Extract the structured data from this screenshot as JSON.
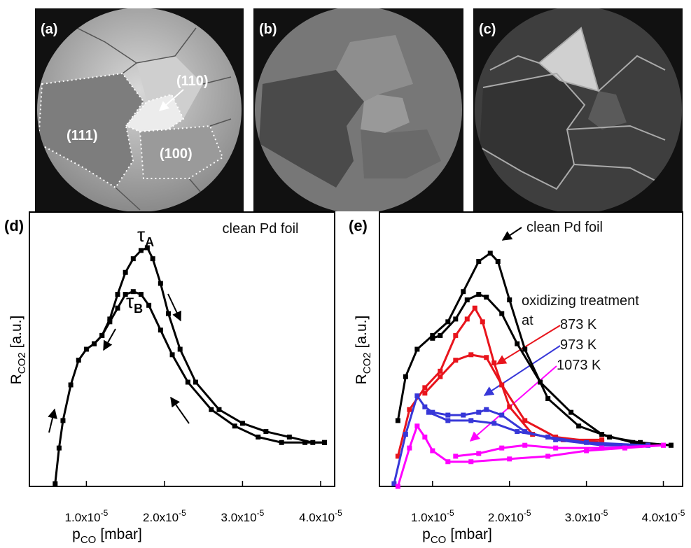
{
  "images": [
    {
      "label": "(a)",
      "regions": [
        "(110)",
        "(111)",
        "(100)"
      ]
    },
    {
      "label": "(b)"
    },
    {
      "label": "(c)"
    }
  ],
  "chart_data": [
    {
      "type": "line",
      "panel_label": "(d)",
      "marker": "square",
      "xlabel": {
        "symbol": "p",
        "subscript": "CO",
        "unit": "[mbar]"
      },
      "ylabel": {
        "symbol": "R",
        "subscript": "CO2",
        "unit": "[a.u.]"
      },
      "xlim": [
        2.7e-06,
        4.18e-05
      ],
      "ylim": [
        0,
        100
      ],
      "xticks": [
        {
          "value": 1e-05,
          "label": "1.0x10",
          "exponent": "-5"
        },
        {
          "value": 2e-05,
          "label": "2.0x10",
          "exponent": "-5"
        },
        {
          "value": 3e-05,
          "label": "3.0x10",
          "exponent": "-5"
        },
        {
          "value": 4e-05,
          "label": "4.0x10",
          "exponent": "-5"
        }
      ],
      "annotations": [
        {
          "text": "clean Pd foil"
        },
        {
          "text": "τ",
          "subscript": "A"
        },
        {
          "text": "τ",
          "subscript": "B"
        }
      ],
      "series": [
        {
          "color": "#000000",
          "x": [
            6e-06,
            6.5e-06,
            7e-06,
            8e-06,
            9e-06,
            1e-05,
            1.1e-05,
            1.2e-05,
            1.3e-05,
            1.4e-05,
            1.5e-05,
            1.6e-05,
            1.7e-05,
            1.78e-05,
            1.85e-05,
            1.95e-05,
            2.05e-05,
            2.2e-05,
            2.4e-05,
            2.7e-05,
            3e-05,
            3.3e-05,
            3.6e-05,
            3.9e-05,
            4.05e-05
          ],
          "values": [
            1,
            14,
            24,
            37,
            46,
            50,
            52,
            55,
            61,
            70,
            78,
            83,
            86,
            87,
            83,
            74,
            63,
            50,
            38,
            28,
            23,
            20,
            18,
            16,
            16
          ]
        },
        {
          "color": "#000000",
          "x": [
            4.05e-05,
            3.8e-05,
            3.5e-05,
            3.2e-05,
            2.9e-05,
            2.6e-05,
            2.3e-05,
            2.1e-05,
            1.95e-05,
            1.8e-05,
            1.7e-05,
            1.6e-05,
            1.5e-05,
            1.4e-05,
            1.3e-05,
            1.2e-05,
            1.1e-05
          ],
          "values": [
            16,
            16,
            16,
            18,
            22,
            28,
            38,
            48,
            57,
            66,
            70,
            71,
            70,
            65,
            60,
            55,
            52
          ]
        }
      ]
    },
    {
      "type": "line",
      "panel_label": "(e)",
      "marker": "square",
      "xlabel": {
        "symbol": "p",
        "subscript": "CO",
        "unit": "[mbar]"
      },
      "ylabel": {
        "symbol": "R",
        "subscript": "CO2",
        "unit": "[a.u.]"
      },
      "xlim": [
        3.1e-06,
        4.25e-05
      ],
      "ylim": [
        0,
        100
      ],
      "xticks": [
        {
          "value": 1e-05,
          "label": "1.0x10",
          "exponent": "-5"
        },
        {
          "value": 2e-05,
          "label": "2.0x10",
          "exponent": "-5"
        },
        {
          "value": 3e-05,
          "label": "3.0x10",
          "exponent": "-5"
        },
        {
          "value": 4e-05,
          "label": "4.0x10",
          "exponent": "-5"
        }
      ],
      "annotations": [
        {
          "text": "clean Pd foil"
        },
        {
          "text": "oxidizing treatment"
        },
        {
          "text": "at"
        },
        {
          "text": "873 K",
          "color": "#e8141c"
        },
        {
          "text": "973 K",
          "color": "#3737d8"
        },
        {
          "text": "1073 K",
          "color": "#ff00ff"
        }
      ],
      "series": [
        {
          "color": "#000000",
          "x": [
            5.5e-06,
            6.5e-06,
            8e-06,
            1e-05,
            1.2e-05,
            1.4e-05,
            1.6e-05,
            1.75e-05,
            1.85e-05,
            2e-05,
            2.2e-05,
            2.5e-05,
            2.9e-05,
            3.3e-05,
            3.7e-05,
            4.1e-05
          ],
          "values": [
            24,
            40,
            50,
            55,
            60,
            71,
            82,
            85,
            82,
            68,
            50,
            32,
            22,
            18,
            16,
            15
          ]
        },
        {
          "color": "#000000",
          "x": [
            4.1e-05,
            3.6e-05,
            3.2e-05,
            2.8e-05,
            2.4e-05,
            2.1e-05,
            1.9e-05,
            1.7e-05,
            1.6e-05,
            1.45e-05,
            1.3e-05,
            1.1e-05,
            1e-05
          ],
          "values": [
            15,
            16,
            19,
            27,
            38,
            52,
            63,
            69,
            70,
            68,
            61,
            55,
            54
          ]
        },
        {
          "color": "#e8141c",
          "x": [
            5.5e-06,
            7e-06,
            9e-06,
            1.1e-05,
            1.3e-05,
            1.45e-05,
            1.55e-05,
            1.65e-05,
            1.8e-05,
            2e-05,
            2.3e-05,
            2.7e-05,
            3.2e-05
          ],
          "values": [
            11,
            28,
            36,
            42,
            55,
            61,
            65,
            60,
            45,
            29,
            19,
            17,
            17
          ]
        },
        {
          "color": "#e8141c",
          "x": [
            3.2e-05,
            2.6e-05,
            2.2e-05,
            1.9e-05,
            1.7e-05,
            1.5e-05,
            1.3e-05,
            1.1e-05,
            9e-06
          ],
          "values": [
            16,
            18,
            24,
            37,
            47,
            48,
            46,
            40,
            34
          ]
        },
        {
          "color": "#3737d8",
          "x": [
            5e-06,
            6.5e-06,
            8e-06,
            9e-06,
            1e-05,
            1.2e-05,
            1.4e-05,
            1.6e-05,
            1.7e-05,
            1.9e-05,
            2.2e-05,
            2.6e-05,
            3.2e-05,
            3.8e-05
          ],
          "values": [
            1,
            19,
            33,
            29,
            27,
            26,
            26,
            27,
            28,
            26,
            20,
            17,
            15,
            15
          ]
        },
        {
          "color": "#3737d8",
          "x": [
            3.8e-05,
            3e-05,
            2.5e-05,
            2.1e-05,
            1.8e-05,
            1.5e-05,
            1.2e-05,
            9.5e-06
          ],
          "values": [
            15,
            16,
            18,
            20,
            23,
            24,
            24,
            27
          ]
        },
        {
          "color": "#ff00ff",
          "x": [
            5.5e-06,
            7e-06,
            8e-06,
            9e-06,
            1e-05,
            1.2e-05,
            1.5e-05,
            2e-05,
            2.5e-05,
            3e-05,
            3.5e-05,
            4e-05
          ],
          "values": [
            0,
            14,
            22,
            18,
            13,
            9,
            9,
            10,
            11,
            13,
            14,
            15
          ]
        },
        {
          "color": "#ff00ff",
          "x": [
            4e-05,
            3.2e-05,
            2.6e-05,
            2.2e-05,
            1.9e-05,
            1.6e-05,
            1.3e-05
          ],
          "values": [
            15,
            14,
            14,
            15,
            14,
            12,
            11
          ]
        }
      ]
    }
  ]
}
